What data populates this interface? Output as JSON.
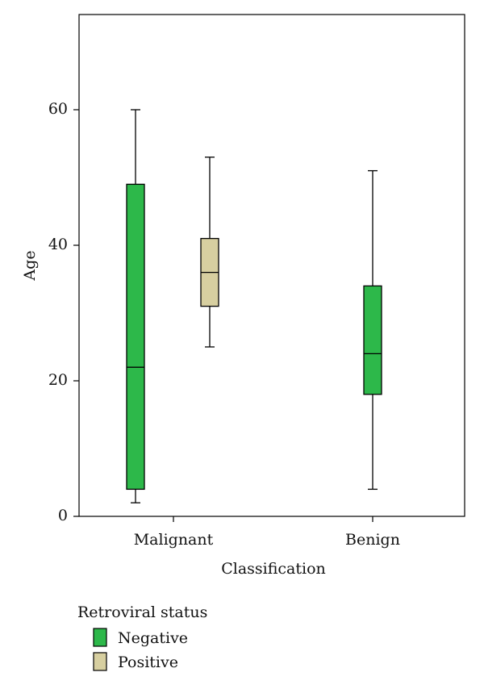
{
  "chart_data": {
    "type": "boxplot",
    "xlabel": "Classification",
    "ylabel": "Age",
    "categories": [
      "Malignant",
      "Benign"
    ],
    "ylim": [
      0,
      75
    ],
    "yticks": [
      0,
      20,
      40,
      60
    ],
    "grid": false,
    "legend": {
      "title": "Retroviral status",
      "placement": "bottom-left",
      "entries": [
        {
          "name": "Negative",
          "color": "#2db84a"
        },
        {
          "name": "Positive",
          "color": "#d7cfa0"
        }
      ]
    },
    "boxes": [
      {
        "category": "Malignant",
        "series": "Negative",
        "min": 2,
        "q1": 4,
        "median": 22,
        "q3": 49,
        "max": 60
      },
      {
        "category": "Malignant",
        "series": "Positive",
        "min": 25,
        "q1": 31,
        "median": 36,
        "q3": 41,
        "max": 53
      },
      {
        "category": "Benign",
        "series": "Negative",
        "min": 4,
        "q1": 18,
        "median": 24,
        "q3": 34,
        "max": 51
      }
    ]
  }
}
